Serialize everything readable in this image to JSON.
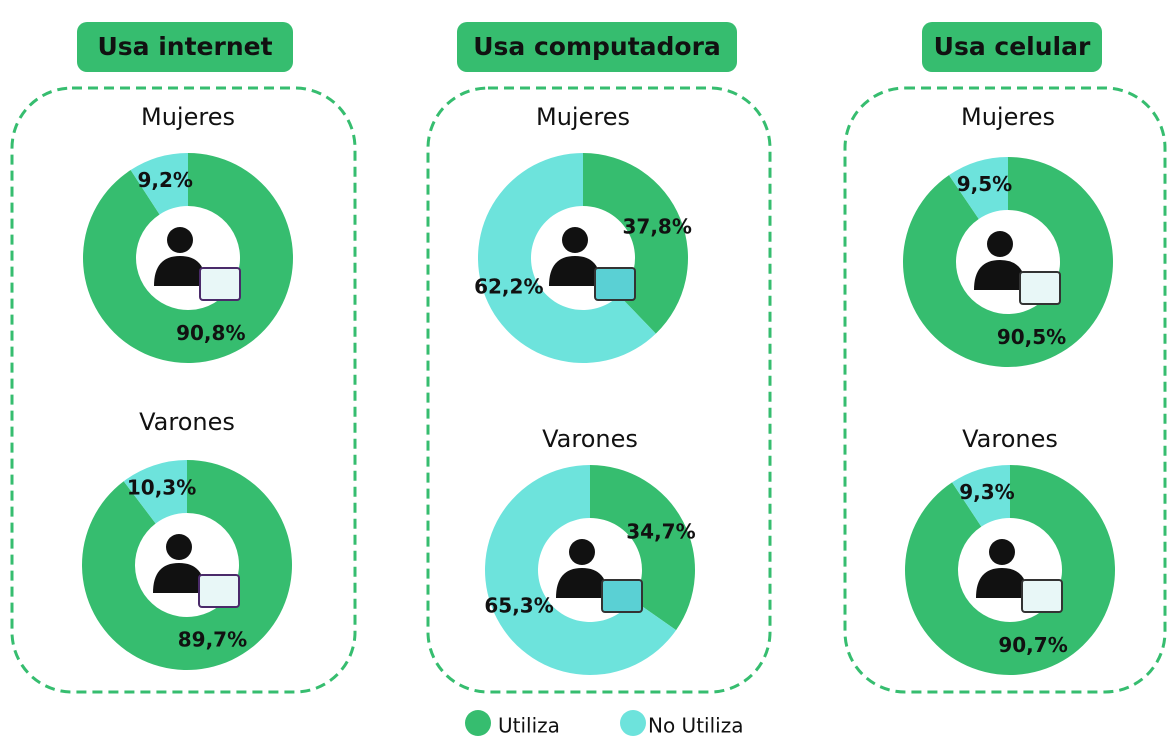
{
  "chart_data": [
    {
      "type": "donut",
      "title": "Usa internet",
      "categories": [
        "Utiliza",
        "No Utiliza"
      ],
      "colors": [
        "#36bd6f",
        "#6de3dc"
      ],
      "series": [
        {
          "name": "Mujeres",
          "values": [
            90.8,
            9.2
          ],
          "value_labels": [
            "90,8%",
            "9,2%"
          ]
        },
        {
          "name": "Varones",
          "values": [
            89.7,
            10.3
          ],
          "value_labels": [
            "89,7%",
            "10,3%"
          ]
        }
      ]
    },
    {
      "type": "donut",
      "title": "Usa computadora",
      "categories": [
        "Utiliza",
        "No Utiliza"
      ],
      "colors": [
        "#36bd6f",
        "#6de3dc"
      ],
      "series": [
        {
          "name": "Mujeres",
          "values": [
            37.8,
            62.2
          ],
          "value_labels": [
            "37,8%",
            "62,2%"
          ]
        },
        {
          "name": "Varones",
          "values": [
            34.7,
            65.3
          ],
          "value_labels": [
            "34,7%",
            "65,3%"
          ]
        }
      ]
    },
    {
      "type": "donut",
      "title": "Usa celular",
      "categories": [
        "Utiliza",
        "No Utiliza"
      ],
      "colors": [
        "#36bd6f",
        "#6de3dc"
      ],
      "series": [
        {
          "name": "Mujeres",
          "values": [
            90.5,
            9.5
          ],
          "value_labels": [
            "90,5%",
            "9,5%"
          ]
        },
        {
          "name": "Varones",
          "values": [
            90.7,
            9.3
          ],
          "value_labels": [
            "90,7%",
            "9,3%"
          ]
        }
      ]
    }
  ]
}
